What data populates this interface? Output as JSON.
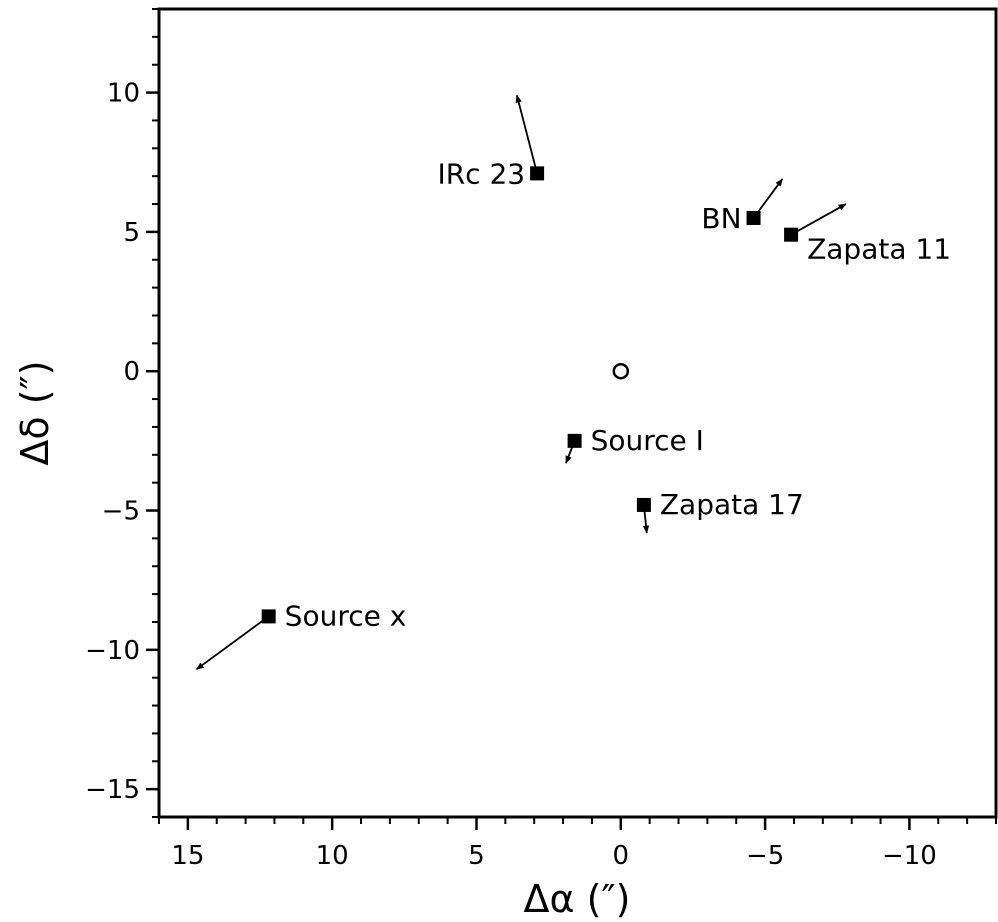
{
  "chart_data": {
    "type": "scatter",
    "title": "",
    "xlabel": "Δα (″)",
    "ylabel": "Δδ (″)",
    "xlim": [
      16,
      -13
    ],
    "ylim": [
      -16,
      13
    ],
    "x_inverted": true,
    "grid": false,
    "legend": "none",
    "x_ticks": [
      15,
      10,
      5,
      0,
      -5,
      -10
    ],
    "x_tick_labels": [
      "15",
      "10",
      "5",
      "0",
      "−5",
      "−10"
    ],
    "y_ticks": [
      10,
      5,
      0,
      -5,
      -10,
      -15
    ],
    "y_tick_labels": [
      "10",
      "5",
      "0",
      "−5",
      "−10",
      "−15"
    ],
    "reference": {
      "x": 0,
      "y": 0,
      "marker": "open-circle"
    },
    "sources": [
      {
        "name": "IRc 23",
        "x": 2.9,
        "y": 7.1,
        "dx": 0.7,
        "dy": 2.8,
        "label_side": "left"
      },
      {
        "name": "BN",
        "x": -4.6,
        "y": 5.5,
        "dx": -1.0,
        "dy": 1.4,
        "label_side": "left"
      },
      {
        "name": "Zapata 11",
        "x": -5.9,
        "y": 4.9,
        "dx": -1.9,
        "dy": 1.1,
        "label_side": "below-right"
      },
      {
        "name": "Source I",
        "x": 1.6,
        "y": -2.5,
        "dx": 0.3,
        "dy": -0.8,
        "label_side": "right"
      },
      {
        "name": "Zapata 17",
        "x": -0.8,
        "y": -4.8,
        "dx": -0.1,
        "dy": -1.0,
        "label_side": "right"
      },
      {
        "name": "Source x",
        "x": 12.2,
        "y": -8.8,
        "dx": 2.5,
        "dy": -1.9,
        "label_side": "right"
      }
    ]
  }
}
